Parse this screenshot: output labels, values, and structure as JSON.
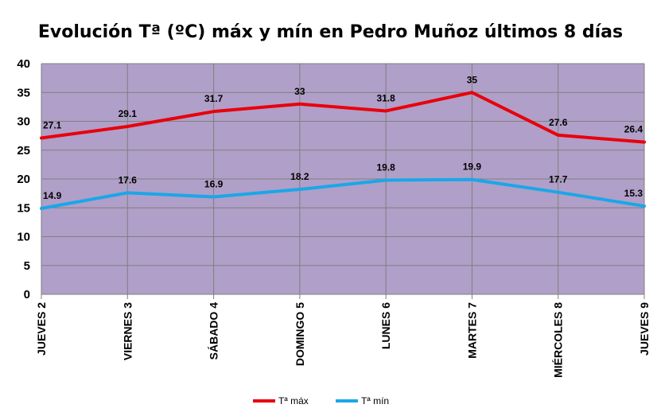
{
  "chart_data": {
    "type": "line",
    "title": "Evolución Tª (ºC) máx y mín en Pedro Muñoz últimos 8 días",
    "categories": [
      "JUEVES 2",
      "VIERNES 3",
      "SÁBADO 4",
      "DOMINGO 5",
      "LUNES 6",
      "MARTES 7",
      "MIÉRCOLES 8",
      "JUEVES 9"
    ],
    "series": [
      {
        "name": "Tª máx",
        "color": "#e8000b",
        "values": [
          27.1,
          29.1,
          31.7,
          33,
          31.8,
          35,
          27.6,
          26.4
        ]
      },
      {
        "name": "Tª mín",
        "color": "#1aa7e8",
        "values": [
          14.9,
          17.6,
          16.9,
          18.2,
          19.8,
          19.9,
          17.7,
          15.3
        ]
      }
    ],
    "ylim": [
      0,
      40
    ],
    "yticks": [
      0,
      5,
      10,
      15,
      20,
      25,
      30,
      35,
      40
    ],
    "grid": true,
    "plot_background": "#b09fc8",
    "legend_position": "bottom-center"
  }
}
